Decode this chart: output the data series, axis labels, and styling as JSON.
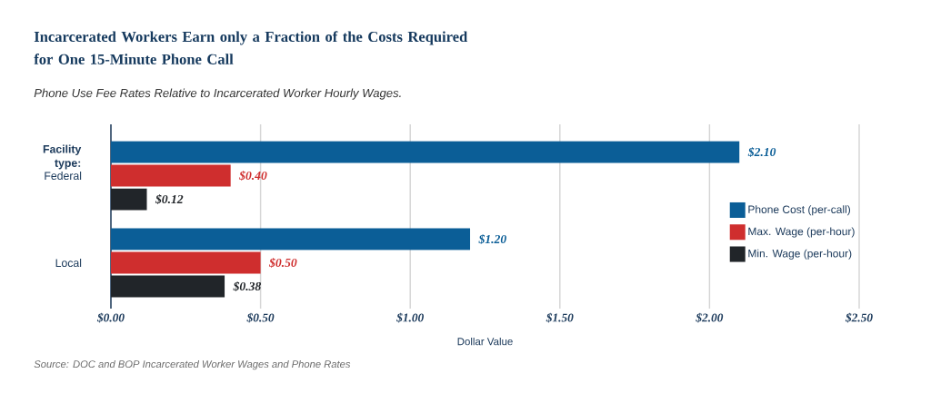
{
  "chart_data": {
    "type": "bar",
    "orientation": "horizontal",
    "title": "Incarcerated Workers Earn only a Fraction of the Costs Required for One 15-Minute Phone Call",
    "subtitle": "Phone Use Fee Rates Relative to Incarcerated Worker Hourly Wages.",
    "xlabel": "Dollar Value",
    "ylabel": "Facility type:",
    "annotations": [
      "Source: DOC and BOP Incarcerated Worker Wages and Phone Rates"
    ],
    "categories": [
      "Federal",
      "Local"
    ],
    "series": [
      {
        "name": "Phone Cost (per-call)",
        "color": "#0b5e97",
        "values": [
          2.1,
          1.2
        ],
        "value_labels": [
          "$2.10",
          "$1.20"
        ]
      },
      {
        "name": "Max. Wage (per-hour)",
        "color": "#cf2e2e",
        "values": [
          0.4,
          0.5
        ],
        "value_labels": [
          "$0.40",
          "$0.50"
        ]
      },
      {
        "name": "Min. Wage (per-hour)",
        "color": "#212529",
        "values": [
          0.12,
          0.38
        ],
        "value_labels": [
          "$0.12",
          "$0.38"
        ]
      }
    ],
    "xlim": [
      0,
      2.5
    ],
    "xticks": [
      {
        "value": 0,
        "label": "$0.00"
      },
      {
        "value": 0.5,
        "label": "$0.50"
      },
      {
        "value": 1.0,
        "label": "$1.00"
      },
      {
        "value": 1.5,
        "label": "$1.50"
      },
      {
        "value": 2.0,
        "label": "$2.00"
      },
      {
        "value": 2.5,
        "label": "$2.50"
      }
    ],
    "grid": "x",
    "legend": "right"
  }
}
